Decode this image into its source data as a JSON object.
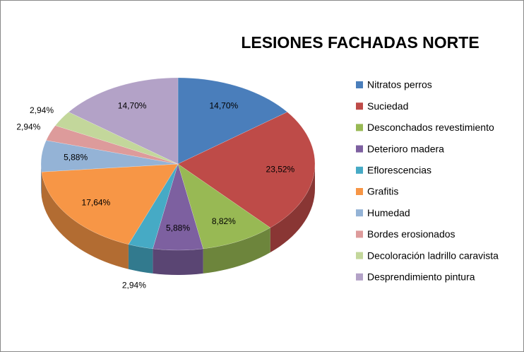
{
  "chart_data": {
    "type": "pie3d",
    "title": "LESIONES  FACHADAS NORTE",
    "categories": [
      "Nitratos perros",
      "Suciedad",
      "Desconchados revestimiento",
      "Deterioro madera",
      "Eflorescencias",
      "Grafitis",
      "Humedad",
      "Bordes erosionados",
      "Decoloración ladrillo caravista",
      "Desprendimiento pintura"
    ],
    "values": [
      14.7,
      23.52,
      8.82,
      5.88,
      2.94,
      17.64,
      5.88,
      2.94,
      2.94,
      14.7
    ],
    "value_labels": [
      "14,70%",
      "23,52%",
      "8,82%",
      "5,88%",
      "2,94%",
      "17,64%",
      "5,88%",
      "2,94%",
      "2,94%",
      "14,70%"
    ],
    "colors": [
      "#4a7ebb",
      "#be4b48",
      "#98b954",
      "#7d60a0",
      "#46aac5",
      "#f79646",
      "#94b3d6",
      "#dd9b9b",
      "#c3d79b",
      "#b3a2c7"
    ],
    "legend": "right"
  }
}
